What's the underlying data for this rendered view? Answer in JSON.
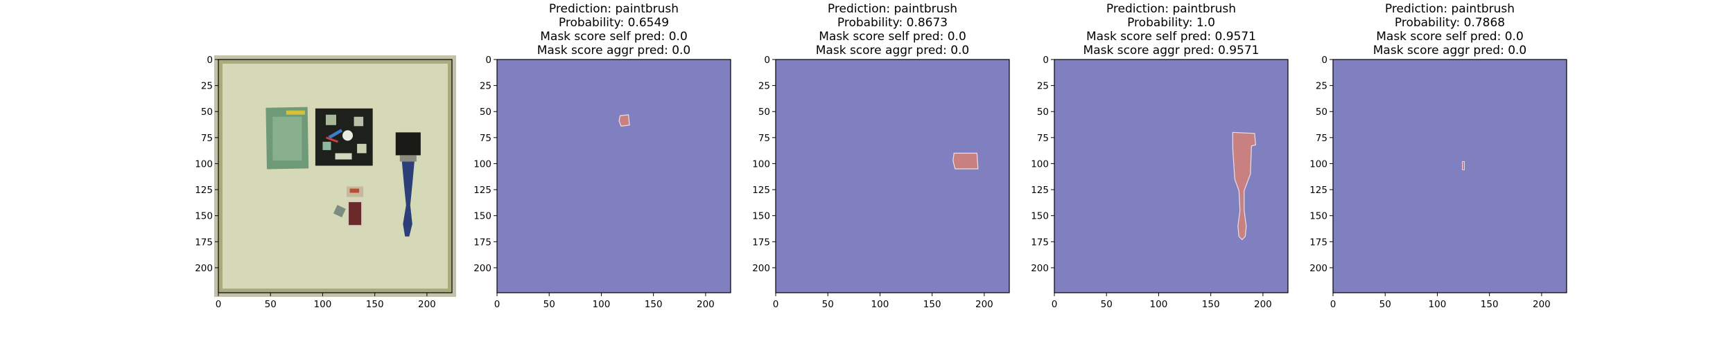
{
  "chart_data": [
    {
      "type": "image",
      "content": "photo",
      "xlim": [
        0,
        224
      ],
      "ylim": [
        224,
        0
      ],
      "xticks": [
        0,
        50,
        100,
        150,
        200
      ],
      "yticks": [
        0,
        25,
        50,
        75,
        100,
        125,
        150,
        175,
        200
      ],
      "title_lines": []
    },
    {
      "type": "heatmap",
      "xlim": [
        0,
        224
      ],
      "ylim": [
        224,
        0
      ],
      "xticks": [
        0,
        50,
        100,
        150,
        200
      ],
      "yticks": [
        0,
        25,
        50,
        75,
        100,
        125,
        150,
        175,
        200
      ],
      "title_lines": [
        "Prediction: paintbrush",
        "Probability: 0.6549",
        "Mask score self pred: 0.0",
        "Mask score aggr pred: 0.0"
      ],
      "background_color": "#8080c0",
      "mask_color": "#c98080",
      "mask_regions": [
        {
          "shape": "polygon",
          "points": [
            [
              118,
              54
            ],
            [
              126,
              53
            ],
            [
              127,
              63
            ],
            [
              119,
              64
            ],
            [
              117,
              59
            ]
          ]
        }
      ]
    },
    {
      "type": "heatmap",
      "xlim": [
        0,
        224
      ],
      "ylim": [
        224,
        0
      ],
      "xticks": [
        0,
        50,
        100,
        150,
        200
      ],
      "yticks": [
        0,
        25,
        50,
        75,
        100,
        125,
        150,
        175,
        200
      ],
      "title_lines": [
        "Prediction: paintbrush",
        "Probability: 0.8673",
        "Mask score self pred: 0.0",
        "Mask score aggr pred: 0.0"
      ],
      "background_color": "#8080c0",
      "mask_color": "#c98080",
      "mask_regions": [
        {
          "shape": "polygon",
          "points": [
            [
              171,
              90
            ],
            [
              193,
              90
            ],
            [
              194,
              105
            ],
            [
              172,
              105
            ],
            [
              170,
              97
            ]
          ]
        }
      ]
    },
    {
      "type": "heatmap",
      "xlim": [
        0,
        224
      ],
      "ylim": [
        224,
        0
      ],
      "xticks": [
        0,
        50,
        100,
        150,
        200
      ],
      "yticks": [
        0,
        25,
        50,
        75,
        100,
        125,
        150,
        175,
        200
      ],
      "title_lines": [
        "Prediction: paintbrush",
        "Probability: 1.0",
        "Mask score self pred: 0.9571",
        "Mask score aggr pred: 0.9571"
      ],
      "background_color": "#8080c0",
      "mask_color": "#c98080",
      "mask_regions": [
        {
          "shape": "polygon",
          "points": [
            [
              171,
              70
            ],
            [
              192,
              71
            ],
            [
              193,
              82
            ],
            [
              189,
              83
            ],
            [
              188,
              110
            ],
            [
              185,
              118
            ],
            [
              182,
              126
            ],
            [
              182,
              145
            ],
            [
              184,
              160
            ],
            [
              183,
              170
            ],
            [
              180,
              173
            ],
            [
              177,
              170
            ],
            [
              176,
              160
            ],
            [
              178,
              145
            ],
            [
              177,
              126
            ],
            [
              173,
              115
            ],
            [
              172,
              100
            ],
            [
              171,
              85
            ]
          ]
        }
      ]
    },
    {
      "type": "heatmap",
      "xlim": [
        0,
        224
      ],
      "ylim": [
        224,
        0
      ],
      "xticks": [
        0,
        50,
        100,
        150,
        200
      ],
      "yticks": [
        0,
        25,
        50,
        75,
        100,
        125,
        150,
        175,
        200
      ],
      "title_lines": [
        "Prediction: paintbrush",
        "Probability: 0.7868",
        "Mask score self pred: 0.0",
        "Mask score aggr pred: 0.0"
      ],
      "background_color": "#8080c0",
      "mask_color": "#c98080",
      "mask_regions": [
        {
          "shape": "rect",
          "x": 124,
          "y": 98,
          "w": 2,
          "h": 8
        }
      ]
    }
  ]
}
